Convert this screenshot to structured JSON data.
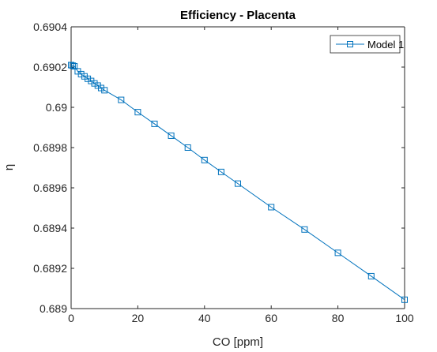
{
  "chart_data": {
    "type": "line",
    "title": "Efficiency - Placenta",
    "xlabel": "CO [ppm]",
    "ylabel": "η",
    "xlim": [
      0,
      100
    ],
    "ylim": [
      0.689,
      0.6904
    ],
    "xticks": [
      0,
      20,
      40,
      60,
      80,
      100
    ],
    "xtick_labels": [
      "0",
      "20",
      "40",
      "60",
      "80",
      "100"
    ],
    "yticks": [
      0.689,
      0.6892,
      0.6894,
      0.6896,
      0.6898,
      0.69,
      0.6902,
      0.6904
    ],
    "ytick_labels": [
      "0.689",
      "0.6892",
      "0.6894",
      "0.6896",
      "0.6898",
      "0.69",
      "0.6902",
      "0.6904"
    ],
    "grid": false,
    "legend_position": "top-right",
    "series": [
      {
        "name": "Model 1",
        "color": "#0072BD",
        "marker": "square",
        "x": [
          0,
          0.5,
          1,
          2,
          3,
          4,
          5,
          6,
          7,
          8,
          9,
          10,
          15,
          20,
          25,
          30,
          35,
          40,
          45,
          50,
          60,
          70,
          80,
          90,
          100
        ],
        "y": [
          0.69021,
          0.690207,
          0.690204,
          0.690179,
          0.690165,
          0.690154,
          0.690142,
          0.690131,
          0.690119,
          0.690108,
          0.690096,
          0.690085,
          0.690037,
          0.689976,
          0.689918,
          0.689859,
          0.6898,
          0.689738,
          0.689679,
          0.689621,
          0.689504,
          0.689393,
          0.689277,
          0.689161,
          0.689044
        ]
      }
    ]
  }
}
